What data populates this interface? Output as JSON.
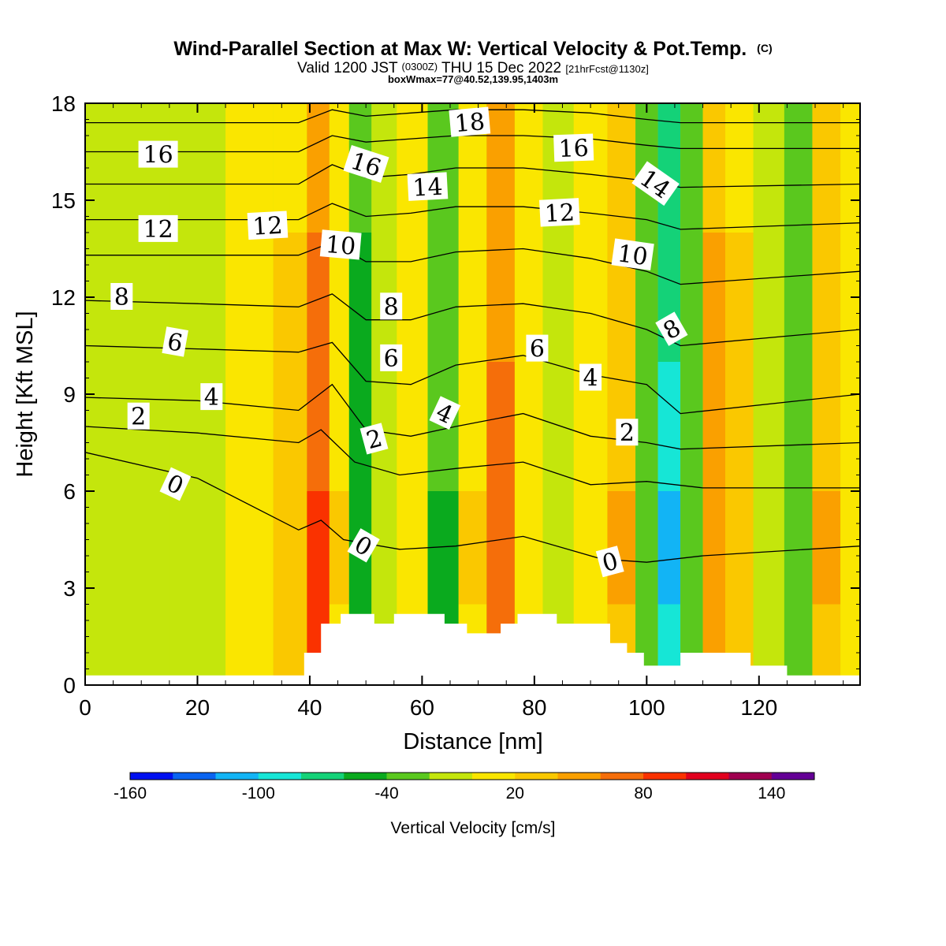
{
  "header": {
    "title_main": "Wind-Parallel Section at Max W: Vertical Velocity & Pot.Temp.",
    "title_c": "(C)",
    "valid_a": "Valid 1200 JST",
    "valid_b": "(0300Z)",
    "valid_c": "THU 15 Dec 2022",
    "valid_d": "[21hrFcst@1130z]",
    "boxinfo": "boxWmax=77@40.52,139.95,1403m"
  },
  "chart_data": {
    "type": "heatmap",
    "xlabel": "Distance [nm]",
    "ylabel": "Height [Kft MSL]",
    "xlim": [
      0,
      138
    ],
    "ylim": [
      0,
      18
    ],
    "x_ticks": [
      "0",
      "20",
      "40",
      "60",
      "80",
      "100",
      "120"
    ],
    "y_ticks": [
      "0",
      "3",
      "6",
      "9",
      "12",
      "15",
      "18"
    ],
    "x_tick_values": [
      0,
      20,
      40,
      60,
      80,
      100,
      120
    ],
    "y_tick_values": [
      0,
      3,
      6,
      9,
      12,
      15,
      18
    ],
    "colorbar": {
      "label": "Vertical Velocity [cm/s]",
      "tick_labels": [
        "-160",
        "-100",
        "-40",
        "20",
        "80",
        "140"
      ],
      "tick_values": [
        -160,
        -100,
        -40,
        20,
        80,
        140
      ],
      "bounds": [
        -160,
        -140,
        -120,
        -100,
        -80,
        -60,
        -40,
        -20,
        0,
        20,
        40,
        60,
        80,
        100,
        120,
        140,
        160
      ],
      "colors": [
        "#0010f0",
        "#0a64f0",
        "#12b4f5",
        "#16e6d6",
        "#14d278",
        "#0aaa1e",
        "#5ac81e",
        "#c4e60c",
        "#fae600",
        "#fac800",
        "#faa000",
        "#f56e0a",
        "#fa3200",
        "#e1001e",
        "#a00050",
        "#640096"
      ]
    },
    "velocity_columns": [
      {
        "x": 2,
        "w": -8
      },
      {
        "x": 10,
        "w": -12
      },
      {
        "x": 20,
        "w": -6
      },
      {
        "x": 30,
        "w": 2
      },
      {
        "x": 37,
        "w": 30
      },
      {
        "x": 42,
        "w": 90
      },
      {
        "x": 45,
        "w": 20
      },
      {
        "x": 49,
        "w": -60
      },
      {
        "x": 53,
        "w": -10
      },
      {
        "x": 58,
        "w": 15
      },
      {
        "x": 64,
        "w": -45
      },
      {
        "x": 69,
        "w": 20
      },
      {
        "x": 74,
        "w": 75
      },
      {
        "x": 79,
        "w": 5
      },
      {
        "x": 84,
        "w": -15
      },
      {
        "x": 90,
        "w": 10
      },
      {
        "x": 96,
        "w": 40
      },
      {
        "x": 100,
        "w": -40
      },
      {
        "x": 104,
        "w": -105
      },
      {
        "x": 108,
        "w": -40
      },
      {
        "x": 112,
        "w": 55
      },
      {
        "x": 116,
        "w": 30
      },
      {
        "x": 122,
        "w": -10
      },
      {
        "x": 127,
        "w": -35
      },
      {
        "x": 132,
        "w": 40
      },
      {
        "x": 137,
        "w": 10
      }
    ],
    "terrain": [
      {
        "x": 0,
        "z": 0.3
      },
      {
        "x": 39,
        "z": 0.3
      },
      {
        "x": 39,
        "z": 1.0
      },
      {
        "x": 42,
        "z": 1.0
      },
      {
        "x": 42,
        "z": 1.9
      },
      {
        "x": 45.5,
        "z": 1.9
      },
      {
        "x": 45.5,
        "z": 2.2
      },
      {
        "x": 51.5,
        "z": 2.2
      },
      {
        "x": 51.5,
        "z": 1.9
      },
      {
        "x": 55,
        "z": 1.9
      },
      {
        "x": 55,
        "z": 2.2
      },
      {
        "x": 64,
        "z": 2.2
      },
      {
        "x": 64,
        "z": 1.9
      },
      {
        "x": 68,
        "z": 1.9
      },
      {
        "x": 68,
        "z": 1.6
      },
      {
        "x": 74,
        "z": 1.6
      },
      {
        "x": 74,
        "z": 1.9
      },
      {
        "x": 77,
        "z": 1.9
      },
      {
        "x": 77,
        "z": 2.2
      },
      {
        "x": 84,
        "z": 2.2
      },
      {
        "x": 84,
        "z": 1.9
      },
      {
        "x": 93.5,
        "z": 1.9
      },
      {
        "x": 93.5,
        "z": 1.3
      },
      {
        "x": 96.5,
        "z": 1.3
      },
      {
        "x": 96.5,
        "z": 1.0
      },
      {
        "x": 99.5,
        "z": 1.0
      },
      {
        "x": 99.5,
        "z": 0.6
      },
      {
        "x": 106,
        "z": 0.6
      },
      {
        "x": 106,
        "z": 1.0
      },
      {
        "x": 118.5,
        "z": 1.0
      },
      {
        "x": 118.5,
        "z": 0.6
      },
      {
        "x": 125,
        "z": 0.6
      },
      {
        "x": 125,
        "z": 0.3
      },
      {
        "x": 138,
        "z": 0.3
      }
    ],
    "theta_lines": [
      {
        "x": [
          0,
          20,
          38,
          42,
          46,
          56,
          66,
          78,
          92,
          100,
          110,
          138
        ],
        "z": [
          7.2,
          6.4,
          4.8,
          5.1,
          4.5,
          4.2,
          4.3,
          4.6,
          3.9,
          3.8,
          4.0,
          4.3
        ],
        "label": "0"
      },
      {
        "x": [
          0,
          20,
          38,
          42,
          48,
          56,
          66,
          78,
          90,
          100,
          110,
          138
        ],
        "z": [
          8.0,
          7.8,
          7.5,
          7.9,
          6.9,
          6.5,
          6.7,
          6.9,
          6.2,
          6.3,
          6.1,
          6.1
        ],
        "label": "2"
      },
      {
        "x": [
          0,
          20,
          38,
          44,
          50,
          58,
          66,
          78,
          90,
          100,
          106,
          138
        ],
        "z": [
          8.9,
          8.8,
          8.5,
          9.3,
          7.9,
          7.7,
          8.0,
          8.4,
          7.7,
          7.5,
          7.3,
          7.5
        ],
        "label": "4"
      },
      {
        "x": [
          0,
          20,
          38,
          44,
          50,
          58,
          66,
          78,
          90,
          100,
          106,
          138
        ],
        "z": [
          10.5,
          10.4,
          10.3,
          10.6,
          9.4,
          9.3,
          9.9,
          10.2,
          9.6,
          9.3,
          8.4,
          9.0
        ],
        "label": "6"
      },
      {
        "x": [
          0,
          20,
          38,
          44,
          50,
          58,
          66,
          78,
          90,
          100,
          106,
          138
        ],
        "z": [
          11.9,
          11.8,
          11.7,
          12.1,
          11.3,
          11.3,
          11.7,
          11.8,
          11.5,
          11.0,
          10.5,
          11.0
        ],
        "label": "8"
      },
      {
        "x": [
          0,
          20,
          38,
          44,
          50,
          58,
          66,
          78,
          90,
          100,
          106,
          138
        ],
        "z": [
          13.3,
          13.3,
          13.3,
          13.7,
          13.1,
          13.1,
          13.4,
          13.5,
          13.2,
          12.8,
          12.4,
          12.8
        ],
        "label": "10"
      },
      {
        "x": [
          0,
          20,
          38,
          44,
          50,
          58,
          66,
          78,
          90,
          100,
          106,
          138
        ],
        "z": [
          14.4,
          14.4,
          14.4,
          14.9,
          14.5,
          14.6,
          14.8,
          14.8,
          14.6,
          14.4,
          14.1,
          14.3
        ],
        "label": "12"
      },
      {
        "x": [
          0,
          20,
          38,
          44,
          50,
          58,
          66,
          78,
          90,
          100,
          106,
          138
        ],
        "z": [
          15.5,
          15.5,
          15.5,
          16.1,
          15.7,
          15.8,
          16.0,
          16.0,
          15.8,
          15.6,
          15.4,
          15.5
        ],
        "label": "14"
      },
      {
        "x": [
          0,
          20,
          38,
          44,
          50,
          58,
          66,
          78,
          90,
          100,
          106,
          138
        ],
        "z": [
          16.5,
          16.5,
          16.5,
          17.0,
          16.8,
          16.9,
          17.0,
          17.0,
          16.9,
          16.7,
          16.6,
          16.6
        ],
        "label": "16"
      },
      {
        "x": [
          0,
          20,
          38,
          44,
          50,
          58,
          66,
          78,
          90,
          100,
          106,
          138
        ],
        "z": [
          17.4,
          17.4,
          17.4,
          17.8,
          17.6,
          17.7,
          17.8,
          17.8,
          17.7,
          17.5,
          17.4,
          17.4
        ],
        "label": "18"
      }
    ],
    "contour_labels": [
      {
        "text": "16",
        "x": 13,
        "z": 16.4,
        "rot": 0
      },
      {
        "text": "12",
        "x": 13,
        "z": 14.1,
        "rot": 0
      },
      {
        "text": "12",
        "x": 32.5,
        "z": 14.2,
        "rot": -3
      },
      {
        "text": "8",
        "x": 6.5,
        "z": 12.0,
        "rot": 0
      },
      {
        "text": "6",
        "x": 16,
        "z": 10.6,
        "rot": 10
      },
      {
        "text": "4",
        "x": 22.5,
        "z": 8.9,
        "rot": 0
      },
      {
        "text": "2",
        "x": 9.5,
        "z": 8.3,
        "rot": 0
      },
      {
        "text": "0",
        "x": 16,
        "z": 6.2,
        "rot": 25
      },
      {
        "text": "16",
        "x": 50,
        "z": 16.1,
        "rot": 18
      },
      {
        "text": "14",
        "x": 61,
        "z": 15.4,
        "rot": -3
      },
      {
        "text": "18",
        "x": 68.5,
        "z": 17.4,
        "rot": -5
      },
      {
        "text": "16",
        "x": 87,
        "z": 16.6,
        "rot": -2
      },
      {
        "text": "12",
        "x": 84.5,
        "z": 14.6,
        "rot": -3
      },
      {
        "text": "10",
        "x": 45.5,
        "z": 13.6,
        "rot": 5
      },
      {
        "text": "8",
        "x": 54.5,
        "z": 11.7,
        "rot": 0
      },
      {
        "text": "6",
        "x": 54.5,
        "z": 10.1,
        "rot": 0
      },
      {
        "text": "4",
        "x": 64,
        "z": 8.4,
        "rot": 25
      },
      {
        "text": "2",
        "x": 51.5,
        "z": 7.6,
        "rot": -15
      },
      {
        "text": "0",
        "x": 49.5,
        "z": 4.3,
        "rot": 30
      },
      {
        "text": "6",
        "x": 80.5,
        "z": 10.4,
        "rot": 0
      },
      {
        "text": "4",
        "x": 90,
        "z": 9.5,
        "rot": 0
      },
      {
        "text": "2",
        "x": 96.5,
        "z": 7.8,
        "rot": 0
      },
      {
        "text": "0",
        "x": 93.5,
        "z": 3.8,
        "rot": -15
      },
      {
        "text": "14",
        "x": 101.5,
        "z": 15.5,
        "rot": 35
      },
      {
        "text": "10",
        "x": 97.5,
        "z": 13.3,
        "rot": 8
      },
      {
        "text": "8",
        "x": 104.5,
        "z": 11.0,
        "rot": -30
      }
    ]
  }
}
